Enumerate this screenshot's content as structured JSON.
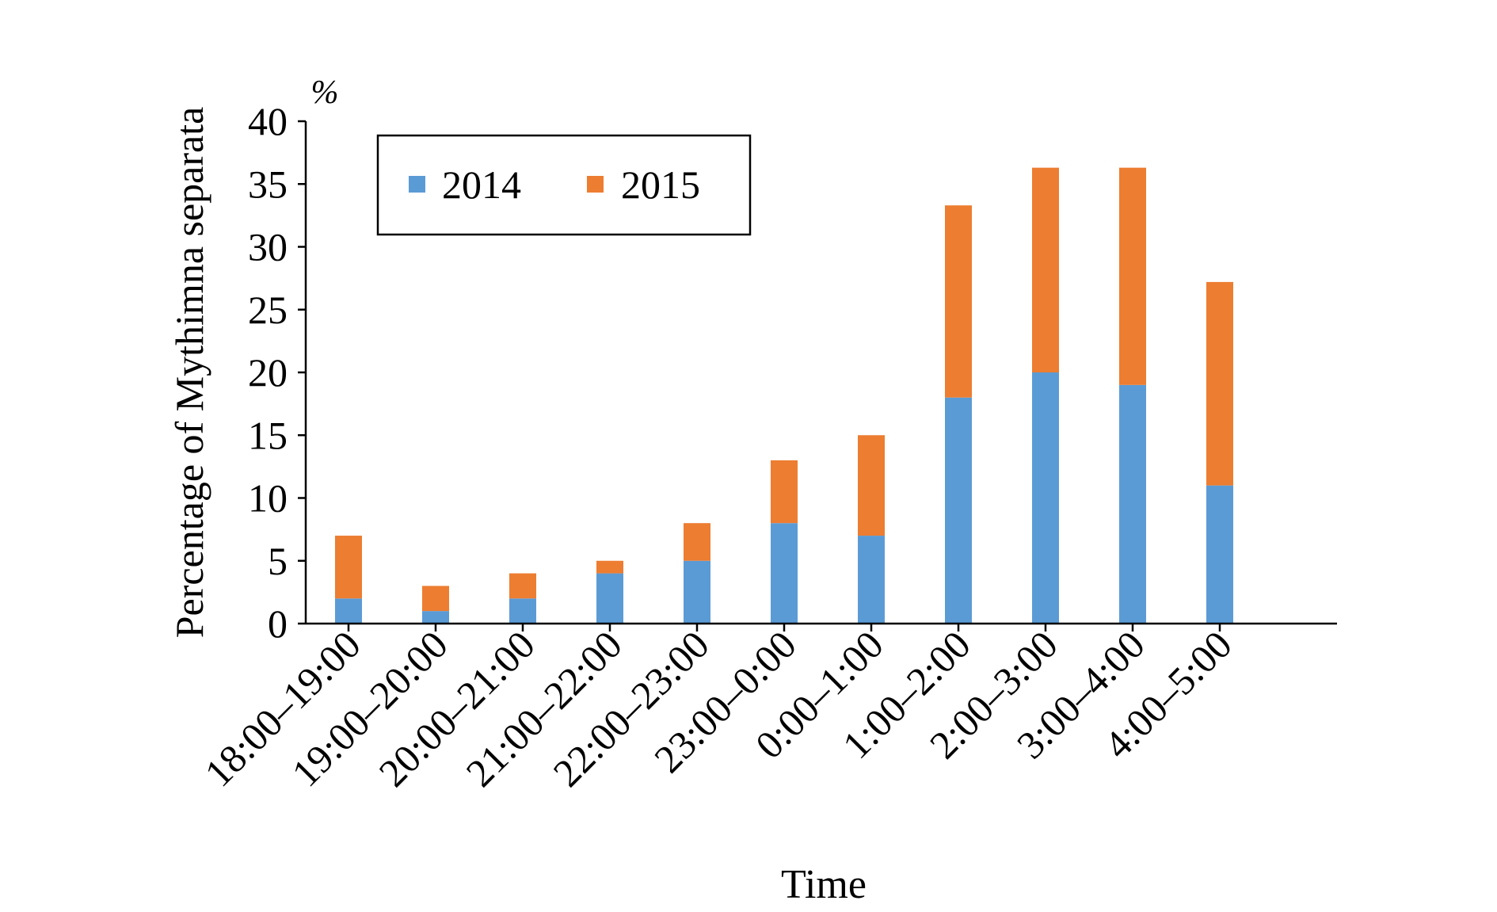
{
  "chart_data": {
    "type": "bar",
    "stacked": true,
    "title": "",
    "xlabel": "Time",
    "ylabel": "Percentage of Mythimna separata",
    "yunit": "%",
    "ylim": [
      0,
      40
    ],
    "yticks": [
      0,
      5,
      10,
      15,
      20,
      25,
      30,
      35,
      40
    ],
    "grid": false,
    "legend_position": "top-left",
    "categories": [
      "18:00–19:00",
      "19:00–20:00",
      "20:00–21:00",
      "21:00–22:00",
      "22:00–23:00",
      "23:00–0:00",
      "0:00–1:00",
      "1:00–2:00",
      "2:00–3:00",
      "3:00–4:00",
      "4:00–5:00"
    ],
    "series": [
      {
        "name": "2014",
        "color": "#5b9bd5",
        "values": [
          2,
          1,
          2,
          4,
          5,
          8,
          7,
          18,
          20,
          19,
          11
        ]
      },
      {
        "name": "2015",
        "color": "#ed7d31",
        "values": [
          5,
          2,
          2,
          1,
          3,
          5,
          8,
          15.3,
          16.3,
          17.3,
          16.2
        ]
      }
    ]
  }
}
